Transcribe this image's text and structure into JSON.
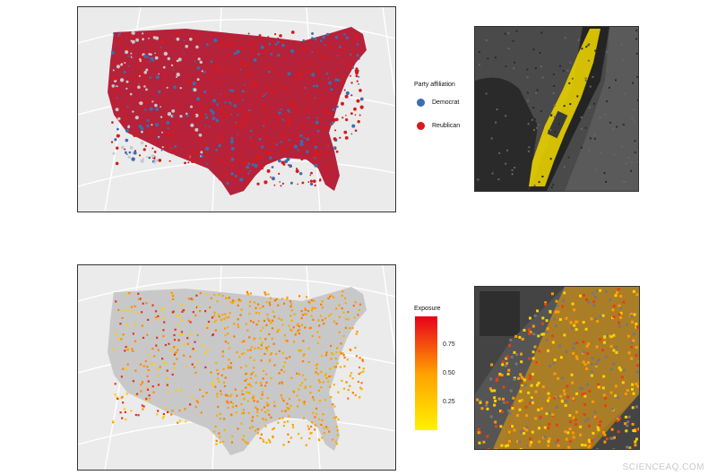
{
  "legend_party": {
    "title": "Party affiliation",
    "items": [
      {
        "label": "Democrat",
        "color": "#3b6db0"
      },
      {
        "label": "Reublican",
        "color": "#d7191c"
      }
    ]
  },
  "legend_exposure": {
    "title": "Exposure",
    "ticks": [
      "0.75",
      "0.50",
      "0.25"
    ],
    "gradient": [
      "#fff200",
      "#ff9a00",
      "#e8001c"
    ]
  },
  "colors": {
    "democrat": "#3b6db0",
    "republican": "#c8102e",
    "land_gray": "#c8c8c8",
    "panel_bg": "#ebebeb",
    "satellite_dark": "#3a3a3a",
    "highlight_yellow": "#f2d400"
  },
  "watermark": "SCIENCEAQ.COM"
}
